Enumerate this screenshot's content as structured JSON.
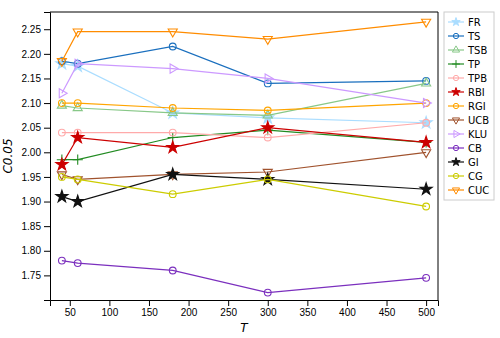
{
  "chart_data": {
    "type": "line",
    "x": [
      40,
      60,
      180,
      300,
      500
    ],
    "series": [
      {
        "name": "FR",
        "color": "#aaddff",
        "marker": "star",
        "line_style": "solid",
        "values": [
          2.18,
          2.175,
          2.08,
          2.07,
          2.06
        ]
      },
      {
        "name": "TS",
        "color": "#1a6fbe",
        "marker": "circle-open",
        "line_style": "solid",
        "values": [
          2.185,
          2.18,
          2.215,
          2.14,
          2.145
        ]
      },
      {
        "name": "TSB",
        "color": "#88c888",
        "marker": "triangle-up-open",
        "line_style": "solid",
        "values": [
          2.095,
          2.09,
          2.08,
          2.075,
          2.14
        ]
      },
      {
        "name": "TP",
        "color": "#228b22",
        "marker": "plus",
        "line_style": "solid",
        "values": [
          1.985,
          1.985,
          2.03,
          2.045,
          2.02
        ]
      },
      {
        "name": "TPB",
        "color": "#ffaaaa",
        "marker": "circle-open",
        "line_style": "solid",
        "values": [
          2.04,
          2.04,
          2.04,
          2.03,
          2.06
        ]
      },
      {
        "name": "RBI",
        "color": "#cc0000",
        "marker": "star",
        "line_style": "solid",
        "values": [
          1.975,
          2.03,
          2.01,
          2.05,
          2.02
        ]
      },
      {
        "name": "RGI",
        "color": "#ffa500",
        "marker": "circle-open",
        "line_style": "solid",
        "values": [
          2.1,
          2.1,
          2.09,
          2.085,
          2.1
        ]
      },
      {
        "name": "UCB",
        "color": "#a0522d",
        "marker": "triangle-down-open",
        "line_style": "solid",
        "values": [
          1.955,
          1.945,
          1.955,
          1.96,
          2.0
        ]
      },
      {
        "name": "KLU",
        "color": "#cc99ff",
        "marker": "triangle-right-open",
        "line_style": "solid",
        "values": [
          2.12,
          2.18,
          2.17,
          2.15,
          2.1
        ]
      },
      {
        "name": "CB",
        "color": "#7b2fbe",
        "marker": "circle-open",
        "line_style": "solid",
        "values": [
          1.78,
          1.775,
          1.76,
          1.715,
          1.745
        ]
      },
      {
        "name": "GI",
        "color": "#111111",
        "marker": "star",
        "line_style": "solid",
        "values": [
          1.91,
          1.9,
          1.955,
          1.945,
          1.925
        ]
      },
      {
        "name": "CG",
        "color": "#cccc00",
        "marker": "circle-open",
        "line_style": "solid",
        "values": [
          1.95,
          1.945,
          1.915,
          1.945,
          1.89
        ]
      },
      {
        "name": "CUC",
        "color": "#ff8c00",
        "marker": "triangle-down-open",
        "line_style": "solid",
        "values": [
          2.185,
          2.245,
          2.245,
          2.23,
          2.265
        ]
      }
    ],
    "xlabel": "T",
    "ylabel": "C0.05",
    "xlim": [
      25,
      515
    ],
    "ylim": [
      1.7,
      2.285
    ],
    "xticks": [
      50,
      100,
      150,
      200,
      250,
      300,
      350,
      400,
      450,
      500
    ],
    "yticks": [
      1.75,
      {
        "value": 1.8,
        "label": "1.80"
      },
      1.85,
      {
        "value": 1.9,
        "label": "1.90"
      },
      1.95,
      {
        "value": 2.0,
        "label": "2.00"
      },
      2.05,
      {
        "value": 2.1,
        "label": "2.10"
      },
      2.15,
      {
        "value": 2.2,
        "label": "2.20"
      },
      2.25
    ],
    "grid": false,
    "legend": "upper right"
  }
}
